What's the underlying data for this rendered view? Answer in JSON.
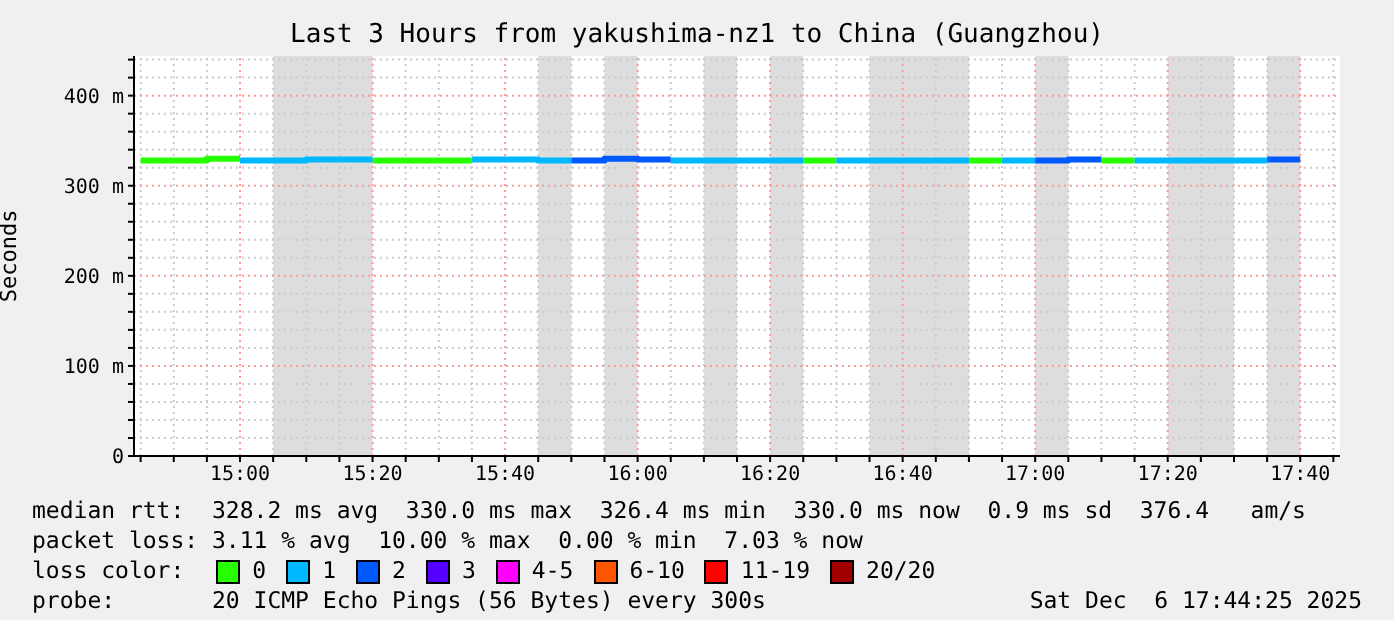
{
  "chart_data": {
    "type": "step",
    "title": "Last 3 Hours from yakushima-nz1 to China (Guangzhou)",
    "ylabel": "Seconds",
    "xlim": [
      "2025-12-06T14:44",
      "2025-12-06T17:46"
    ],
    "ylim": [
      0,
      444
    ],
    "xticks": [
      {
        "value": "2025-12-06T14:45",
        "label": null
      },
      {
        "value": "2025-12-06T14:50",
        "label": null
      },
      {
        "value": "2025-12-06T14:55",
        "label": null
      },
      {
        "value": "2025-12-06T15:00",
        "label": "15:00"
      },
      {
        "value": "2025-12-06T15:05",
        "label": null
      },
      {
        "value": "2025-12-06T15:10",
        "label": null
      },
      {
        "value": "2025-12-06T15:15",
        "label": null
      },
      {
        "value": "2025-12-06T15:20",
        "label": "15:20"
      },
      {
        "value": "2025-12-06T15:25",
        "label": null
      },
      {
        "value": "2025-12-06T15:30",
        "label": null
      },
      {
        "value": "2025-12-06T15:35",
        "label": null
      },
      {
        "value": "2025-12-06T15:40",
        "label": "15:40"
      },
      {
        "value": "2025-12-06T15:45",
        "label": null
      },
      {
        "value": "2025-12-06T15:50",
        "label": null
      },
      {
        "value": "2025-12-06T15:55",
        "label": null
      },
      {
        "value": "2025-12-06T16:00",
        "label": "16:00"
      },
      {
        "value": "2025-12-06T16:05",
        "label": null
      },
      {
        "value": "2025-12-06T16:10",
        "label": null
      },
      {
        "value": "2025-12-06T16:15",
        "label": null
      },
      {
        "value": "2025-12-06T16:20",
        "label": "16:20"
      },
      {
        "value": "2025-12-06T16:25",
        "label": null
      },
      {
        "value": "2025-12-06T16:30",
        "label": null
      },
      {
        "value": "2025-12-06T16:35",
        "label": null
      },
      {
        "value": "2025-12-06T16:40",
        "label": "16:40"
      },
      {
        "value": "2025-12-06T16:45",
        "label": null
      },
      {
        "value": "2025-12-06T16:50",
        "label": null
      },
      {
        "value": "2025-12-06T16:55",
        "label": null
      },
      {
        "value": "2025-12-06T17:00",
        "label": "17:00"
      },
      {
        "value": "2025-12-06T17:05",
        "label": null
      },
      {
        "value": "2025-12-06T17:10",
        "label": null
      },
      {
        "value": "2025-12-06T17:15",
        "label": null
      },
      {
        "value": "2025-12-06T17:20",
        "label": "17:20"
      },
      {
        "value": "2025-12-06T17:25",
        "label": null
      },
      {
        "value": "2025-12-06T17:30",
        "label": null
      },
      {
        "value": "2025-12-06T17:35",
        "label": null
      },
      {
        "value": "2025-12-06T17:40",
        "label": "17:40"
      },
      {
        "value": "2025-12-06T17:45",
        "label": null
      }
    ],
    "yticks": [
      {
        "value": 0,
        "label": "0"
      },
      {
        "value": 20,
        "label": null
      },
      {
        "value": 40,
        "label": null
      },
      {
        "value": 60,
        "label": null
      },
      {
        "value": 80,
        "label": null
      },
      {
        "value": 100,
        "label": "100 m"
      },
      {
        "value": 120,
        "label": null
      },
      {
        "value": 140,
        "label": null
      },
      {
        "value": 160,
        "label": null
      },
      {
        "value": 180,
        "label": null
      },
      {
        "value": 200,
        "label": "200 m"
      },
      {
        "value": 220,
        "label": null
      },
      {
        "value": 240,
        "label": null
      },
      {
        "value": 260,
        "label": null
      },
      {
        "value": 280,
        "label": null
      },
      {
        "value": 300,
        "label": "300 m"
      },
      {
        "value": 320,
        "label": null
      },
      {
        "value": 340,
        "label": null
      },
      {
        "value": 360,
        "label": null
      },
      {
        "value": 380,
        "label": null
      },
      {
        "value": 400,
        "label": "400 m"
      },
      {
        "value": 420,
        "label": null
      },
      {
        "value": 440,
        "label": null
      }
    ],
    "grid": true,
    "legend": "bottom",
    "legend_title": "loss color:",
    "line_style": "solid",
    "marker": "none",
    "series": [
      {
        "name": "0",
        "color": "#26ff00",
        "x": [
          "2025-12-06T14:45",
          "2025-12-06T14:50",
          "2025-12-06T14:55",
          "2025-12-06T15:00",
          "2025-12-06T15:20",
          "2025-12-06T15:25",
          "2025-12-06T15:30",
          "2025-12-06T15:35",
          "2025-12-06T16:25",
          "2025-12-06T16:30",
          "2025-12-06T16:50",
          "2025-12-06T16:55",
          "2025-12-06T17:10",
          "2025-12-06T17:15"
        ],
        "values": [
          328,
          328,
          330,
          null,
          328,
          328,
          328,
          null,
          328,
          null,
          328,
          null,
          328,
          328
        ]
      },
      {
        "name": "1",
        "color": "#00b8ff",
        "x": [
          "2025-12-06T15:00",
          "2025-12-06T15:05",
          "2025-12-06T15:10",
          "2025-12-06T15:15",
          "2025-12-06T15:20",
          "2025-12-06T15:35",
          "2025-12-06T15:40",
          "2025-12-06T15:45",
          "2025-12-06T15:50",
          "2025-12-06T16:05",
          "2025-12-06T16:10",
          "2025-12-06T16:15",
          "2025-12-06T16:20",
          "2025-12-06T16:25",
          "2025-12-06T16:30",
          "2025-12-06T16:35",
          "2025-12-06T16:40",
          "2025-12-06T16:45",
          "2025-12-06T16:50",
          "2025-12-06T16:55",
          "2025-12-06T17:00",
          "2025-12-06T17:15",
          "2025-12-06T17:20",
          "2025-12-06T17:25",
          "2025-12-06T17:30",
          "2025-12-06T17:35"
        ],
        "values": [
          328,
          328,
          329,
          329,
          null,
          329,
          329,
          328,
          null,
          328,
          328,
          328,
          328,
          null,
          328,
          328,
          328,
          328,
          null,
          328,
          null,
          328,
          328,
          328,
          328,
          328
        ]
      },
      {
        "name": "2",
        "color": "#0059ff",
        "x": [
          "2025-12-06T15:50",
          "2025-12-06T15:55",
          "2025-12-06T16:00",
          "2025-12-06T16:05",
          "2025-12-06T17:00",
          "2025-12-06T17:05",
          "2025-12-06T17:10",
          "2025-12-06T17:35",
          "2025-12-06T17:40"
        ],
        "values": [
          328,
          330,
          329,
          null,
          328,
          329,
          null,
          329,
          329
        ]
      },
      {
        "name": "3",
        "color": "#5500ff"
      },
      {
        "name": "4-5",
        "color": "#ff00ff"
      },
      {
        "name": "6-10",
        "color": "#ff5500"
      },
      {
        "name": "11-19",
        "color": "#ff0000"
      },
      {
        "name": "20/20",
        "color": "#a10000"
      }
    ],
    "bands": [
      {
        "axis": "x",
        "from": "2025-12-06T15:05",
        "to": "2025-12-06T15:20",
        "color": "#dddddd"
      },
      {
        "axis": "x",
        "from": "2025-12-06T15:45",
        "to": "2025-12-06T15:50",
        "color": "#dddddd"
      },
      {
        "axis": "x",
        "from": "2025-12-06T15:55",
        "to": "2025-12-06T16:00",
        "color": "#dddddd"
      },
      {
        "axis": "x",
        "from": "2025-12-06T16:10",
        "to": "2025-12-06T16:15",
        "color": "#dddddd"
      },
      {
        "axis": "x",
        "from": "2025-12-06T16:20",
        "to": "2025-12-06T16:25",
        "color": "#dddddd"
      },
      {
        "axis": "x",
        "from": "2025-12-06T16:35",
        "to": "2025-12-06T16:50",
        "color": "#dddddd"
      },
      {
        "axis": "x",
        "from": "2025-12-06T17:00",
        "to": "2025-12-06T17:05",
        "color": "#dddddd"
      },
      {
        "axis": "x",
        "from": "2025-12-06T17:20",
        "to": "2025-12-06T17:30",
        "color": "#dddddd"
      },
      {
        "axis": "x",
        "from": "2025-12-06T17:35",
        "to": "2025-12-06T17:40",
        "color": "#dddddd"
      }
    ],
    "annotations": [
      "median rtt:  328.2 ms avg  330.0 ms max  326.4 ms min  330.0 ms now  0.9 ms sd  376.4   am/s",
      "packet loss: 3.11 % avg  10.00 % max  0.00 % min  7.03 % now",
      "probe:       20 ICMP Echo Pings (56 Bytes) every 300s",
      "Sat Dec  6 17:44:25 2025"
    ]
  }
}
